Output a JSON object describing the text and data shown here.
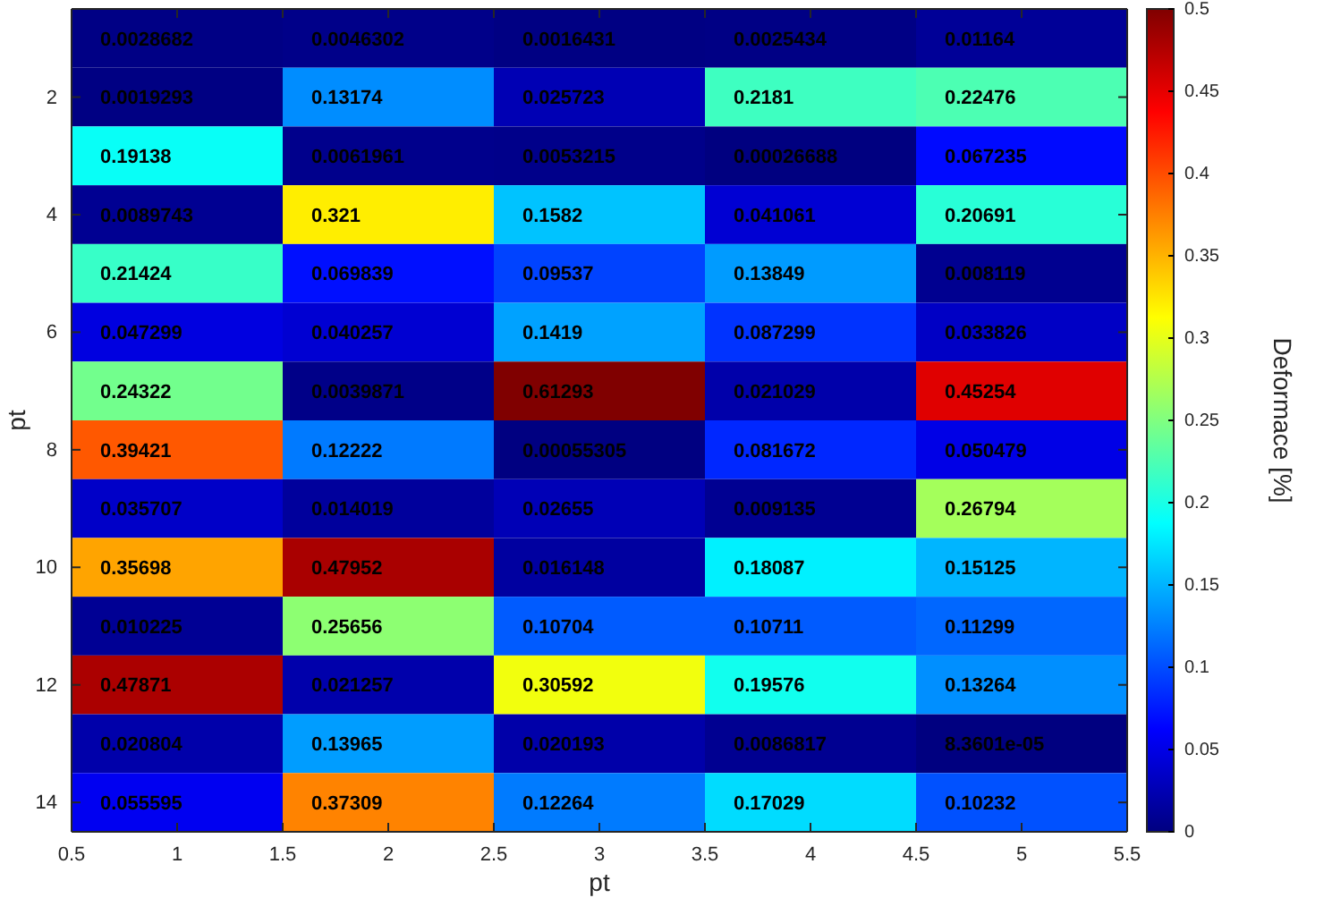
{
  "chart_data": {
    "type": "heatmap",
    "xlabel": "pt",
    "ylabel": "pt",
    "clabel": "Deformace [%]",
    "xlim": [
      0.5,
      5.5
    ],
    "xticks": [
      0.5,
      1,
      1.5,
      2,
      2.5,
      3,
      3.5,
      4,
      4.5,
      5,
      5.5
    ],
    "ylim": [
      14.5,
      0.5
    ],
    "yticks": [
      2,
      4,
      6,
      8,
      10,
      12,
      14
    ],
    "clim": [
      0,
      0.5
    ],
    "cticks": [
      0,
      0.05,
      0.1,
      0.15,
      0.2,
      0.25,
      0.3,
      0.35,
      0.4,
      0.45,
      0.5
    ],
    "cells": [
      [
        0.0028682,
        0.0046302,
        0.0016431,
        0.0025434,
        0.01164
      ],
      [
        0.0019293,
        0.13174,
        0.025723,
        0.2181,
        0.22476
      ],
      [
        0.19138,
        0.0061961,
        0.0053215,
        0.00026688,
        0.067235
      ],
      [
        0.0089743,
        0.321,
        0.1582,
        0.041061,
        0.20691
      ],
      [
        0.21424,
        0.069839,
        0.09537,
        0.13849,
        0.008119
      ],
      [
        0.047299,
        0.040257,
        0.1419,
        0.087299,
        0.033826
      ],
      [
        0.24322,
        0.0039871,
        0.61293,
        0.021029,
        0.45254
      ],
      [
        0.39421,
        0.12222,
        0.00055305,
        0.081672,
        0.050479
      ],
      [
        0.035707,
        0.014019,
        0.02655,
        0.009135,
        0.26794
      ],
      [
        0.35698,
        0.47952,
        0.016148,
        0.18087,
        0.15125
      ],
      [
        0.010225,
        0.25656,
        0.10704,
        0.10711,
        0.11299
      ],
      [
        0.47871,
        0.021257,
        0.30592,
        0.19576,
        0.13264
      ],
      [
        0.020804,
        0.13965,
        0.020193,
        0.0086817,
        8.3601e-05
      ],
      [
        0.055595,
        0.37309,
        0.12264,
        0.17029,
        0.10232
      ]
    ],
    "cell_labels": [
      [
        "0.0028682",
        "0.0046302",
        "0.0016431",
        "0.0025434",
        "0.01164"
      ],
      [
        "0.0019293",
        "0.13174",
        "0.025723",
        "0.2181",
        "0.22476"
      ],
      [
        "0.19138",
        "0.0061961",
        "0.0053215",
        "0.00026688",
        "0.067235"
      ],
      [
        "0.0089743",
        "0.321",
        "0.1582",
        "0.041061",
        "0.20691"
      ],
      [
        "0.21424",
        "0.069839",
        "0.09537",
        "0.13849",
        "0.008119"
      ],
      [
        "0.047299",
        "0.040257",
        "0.1419",
        "0.087299",
        "0.033826"
      ],
      [
        "0.24322",
        "0.0039871",
        "0.61293",
        "0.021029",
        "0.45254"
      ],
      [
        "0.39421",
        "0.12222",
        "0.00055305",
        "0.081672",
        "0.050479"
      ],
      [
        "0.035707",
        "0.014019",
        "0.02655",
        "0.009135",
        "0.26794"
      ],
      [
        "0.35698",
        "0.47952",
        "0.016148",
        "0.18087",
        "0.15125"
      ],
      [
        "0.010225",
        "0.25656",
        "0.10704",
        "0.10711",
        "0.11299"
      ],
      [
        "0.47871",
        "0.021257",
        "0.30592",
        "0.19576",
        "0.13264"
      ],
      [
        "0.020804",
        "0.13965",
        "0.020193",
        "0.0086817",
        "8.3601e-05"
      ],
      [
        "0.055595",
        "0.37309",
        "0.12264",
        "0.17029",
        "0.10232"
      ]
    ]
  }
}
